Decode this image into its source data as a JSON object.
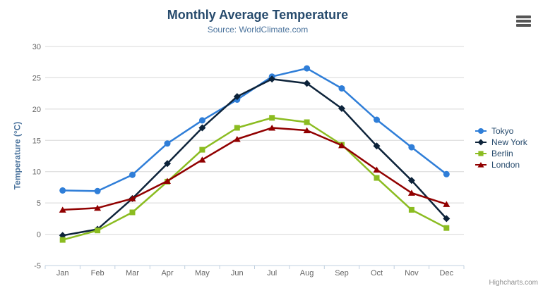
{
  "window": {
    "credits_label": "Highcharts.com",
    "menu_icon": "hamburger-menu-icon"
  },
  "chart_data": {
    "type": "line",
    "title": "Monthly Average Temperature",
    "subtitle": "Source: WorldClimate.com",
    "xlabel": "",
    "ylabel": "Temperature (°C)",
    "categories": [
      "Jan",
      "Feb",
      "Mar",
      "Apr",
      "May",
      "Jun",
      "Jul",
      "Aug",
      "Sep",
      "Oct",
      "Nov",
      "Dec"
    ],
    "ylim": [
      -5,
      30
    ],
    "yticks": [
      -5,
      0,
      5,
      10,
      15,
      20,
      25,
      30
    ],
    "grid": "horizontal gridlines only",
    "legend_position": "right-middle",
    "series": [
      {
        "name": "Tokyo",
        "color": "#2f7ed8",
        "marker": "circle",
        "values": [
          7.0,
          6.9,
          9.5,
          14.5,
          18.2,
          21.5,
          25.2,
          26.5,
          23.3,
          18.3,
          13.9,
          9.6
        ]
      },
      {
        "name": "New York",
        "color": "#0d233a",
        "marker": "diamond",
        "values": [
          -0.2,
          0.8,
          5.7,
          11.3,
          17.0,
          22.0,
          24.8,
          24.1,
          20.1,
          14.1,
          8.6,
          2.5
        ]
      },
      {
        "name": "Berlin",
        "color": "#8bbc21",
        "marker": "square",
        "values": [
          -0.9,
          0.6,
          3.5,
          8.4,
          13.5,
          17.0,
          18.6,
          17.9,
          14.3,
          9.0,
          3.9,
          1.0
        ]
      },
      {
        "name": "London",
        "color": "#910000",
        "marker": "triangle",
        "values": [
          3.9,
          4.2,
          5.7,
          8.5,
          11.9,
          15.2,
          17.0,
          16.6,
          14.2,
          10.3,
          6.6,
          4.8
        ]
      }
    ]
  },
  "colors": {
    "title": "#274b6d",
    "subtitle": "#4d759e",
    "axis_title": "#4d759e",
    "axis_labels": "#666666",
    "grid_line": "#d8d8d8",
    "axis_line": "#c0d0e0",
    "legend_text": "#274b6d",
    "credits": "#909090",
    "background": "#ffffff"
  }
}
